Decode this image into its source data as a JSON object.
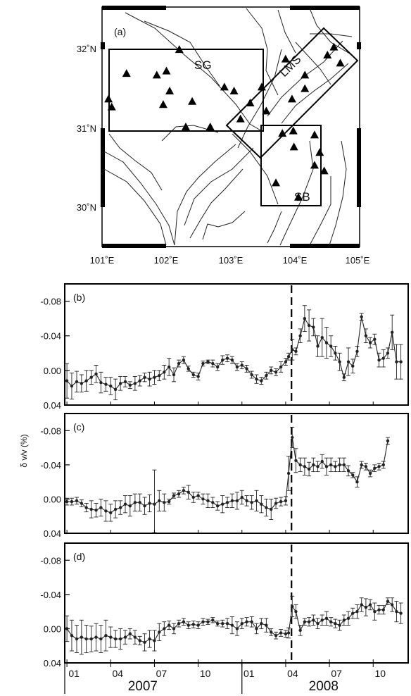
{
  "map": {
    "panel_label": "(a)",
    "lat_labels": [
      "32˚N",
      "31˚N",
      "30˚N"
    ],
    "lon_labels": [
      "101˚E",
      "102˚E",
      "103˚E",
      "104˚E",
      "105˚E"
    ],
    "lon_values": [
      101,
      102,
      103,
      104,
      105
    ],
    "lat_values": [
      32,
      31,
      30
    ],
    "extent": {
      "lon": [
        101,
        105
      ],
      "lat": [
        29.5,
        32.5
      ]
    },
    "regions": [
      {
        "label": "SG"
      },
      {
        "label": "LMS"
      },
      {
        "label": "SB"
      }
    ],
    "stations": [
      {
        "lon": 102.2,
        "lat": 31.97
      },
      {
        "lon": 101.38,
        "lat": 31.67
      },
      {
        "lon": 101.85,
        "lat": 31.65
      },
      {
        "lon": 102.0,
        "lat": 31.7
      },
      {
        "lon": 101.1,
        "lat": 31.35
      },
      {
        "lon": 101.15,
        "lat": 31.25
      },
      {
        "lon": 102.05,
        "lat": 31.45
      },
      {
        "lon": 101.95,
        "lat": 31.28
      },
      {
        "lon": 102.4,
        "lat": 31.32
      },
      {
        "lon": 102.3,
        "lat": 31.0
      },
      {
        "lon": 102.68,
        "lat": 31.0
      },
      {
        "lon": 102.9,
        "lat": 31.5
      },
      {
        "lon": 103.05,
        "lat": 31.45
      },
      {
        "lon": 103.48,
        "lat": 31.5
      },
      {
        "lon": 103.3,
        "lat": 31.3
      },
      {
        "lon": 103.15,
        "lat": 31.1
      },
      {
        "lon": 103.85,
        "lat": 31.85
      },
      {
        "lon": 104.15,
        "lat": 31.65
      },
      {
        "lon": 104.5,
        "lat": 31.9
      },
      {
        "lon": 104.6,
        "lat": 32.0
      },
      {
        "lon": 104.7,
        "lat": 31.8
      },
      {
        "lon": 104.15,
        "lat": 31.48
      },
      {
        "lon": 103.95,
        "lat": 31.35
      },
      {
        "lon": 103.55,
        "lat": 31.2
      },
      {
        "lon": 103.8,
        "lat": 30.92
      },
      {
        "lon": 103.97,
        "lat": 30.95
      },
      {
        "lon": 104.3,
        "lat": 30.9
      },
      {
        "lon": 103.98,
        "lat": 30.75
      },
      {
        "lon": 104.38,
        "lat": 30.68
      },
      {
        "lon": 104.3,
        "lat": 30.52
      },
      {
        "lon": 104.45,
        "lat": 30.45
      },
      {
        "lon": 103.7,
        "lat": 30.3
      },
      {
        "lon": 104.05,
        "lat": 30.12
      }
    ]
  },
  "timeseries": {
    "ylabel": "δ v/v (%)",
    "y_tick_labels": [
      "-0.08",
      "-0.04",
      "0.00",
      "0.04"
    ],
    "y_tick_values": [
      -0.08,
      -0.04,
      0.0,
      0.04
    ],
    "ylim_top": -0.1,
    "ylim_bottom": 0.04,
    "x_tick_labels": [
      "01",
      "04",
      "07",
      "10",
      "01",
      "04",
      "07",
      "10"
    ],
    "x_tick_months": [
      0,
      3,
      6,
      9,
      12,
      15,
      18,
      21
    ],
    "x_month_range": [
      -0.15,
      23.4
    ],
    "year_labels": [
      "2007",
      "2008"
    ],
    "year_positions": [
      5.2,
      17.6
    ],
    "event_month": 15.4,
    "panels": [
      {
        "label": "(b)"
      },
      {
        "label": "(c)"
      },
      {
        "label": "(d)"
      }
    ]
  },
  "chart_data": [
    {
      "type": "line",
      "panel": "(b)",
      "x_unit": "months since Jan 2007",
      "ylim": [
        0.04,
        -0.1
      ],
      "ylabel": "δ v/v (%)",
      "x": [
        0,
        0.33,
        0.67,
        1,
        1.33,
        1.67,
        2,
        2.33,
        2.67,
        3,
        3.33,
        3.67,
        4,
        4.33,
        4.67,
        5,
        5.33,
        5.67,
        6,
        6.33,
        6.67,
        7,
        7.33,
        7.67,
        8,
        8.33,
        8.67,
        9,
        9.33,
        9.67,
        10,
        10.33,
        10.67,
        11,
        11.33,
        11.67,
        12,
        12.33,
        12.67,
        13,
        13.33,
        13.67,
        14,
        14.33,
        14.67,
        15,
        15.2,
        15.45,
        15.7,
        16,
        16.3,
        16.6,
        16.9,
        17.2,
        17.5,
        17.8,
        18.1,
        18.4,
        18.7,
        19,
        19.3,
        19.6,
        19.9,
        20.2,
        20.5,
        20.8,
        21.1,
        21.4,
        21.7,
        22,
        22.3,
        22.6,
        22.9
      ],
      "y": [
        0.012,
        0.018,
        0.013,
        0.015,
        0.012,
        0.008,
        0.004,
        0.014,
        0.016,
        0.018,
        0.022,
        0.015,
        0.013,
        0.017,
        0.015,
        0.012,
        0.008,
        0.01,
        0.008,
        0.006,
        0.002,
        -0.004,
        0.005,
        -0.008,
        -0.012,
        -0.002,
        0.005,
        0.007,
        -0.008,
        -0.01,
        -0.008,
        -0.004,
        -0.012,
        -0.014,
        -0.012,
        -0.004,
        -0.006,
        -0.002,
        0.005,
        0.01,
        0.012,
        0.006,
        0.0,
        0.002,
        -0.004,
        -0.01,
        -0.016,
        -0.024,
        -0.022,
        -0.04,
        -0.06,
        -0.052,
        -0.05,
        -0.028,
        -0.038,
        -0.032,
        -0.028,
        -0.02,
        -0.01,
        0.008,
        -0.01,
        -0.005,
        -0.022,
        -0.062,
        -0.04,
        -0.032,
        -0.036,
        -0.012,
        -0.014,
        -0.02,
        -0.044,
        -0.01,
        -0.01
      ],
      "err": [
        0.02,
        0.015,
        0.012,
        0.01,
        0.012,
        0.008,
        0.01,
        0.012,
        0.008,
        0.01,
        0.012,
        0.008,
        0.006,
        0.004,
        0.008,
        0.006,
        0.005,
        0.008,
        0.008,
        0.006,
        0.008,
        0.01,
        0.008,
        0.004,
        0.004,
        0.003,
        0.003,
        0.004,
        0.003,
        0.002,
        0.004,
        0.004,
        0.005,
        0.004,
        0.004,
        0.004,
        0.004,
        0.004,
        0.004,
        0.005,
        0.004,
        0.004,
        0.004,
        0.004,
        0.006,
        0.004,
        0.004,
        0.012,
        0.004,
        0.008,
        0.015,
        0.018,
        0.01,
        0.012,
        0.022,
        0.018,
        0.012,
        0.008,
        0.01,
        0.004,
        0.016,
        0.008,
        0.006,
        0.004,
        0.008,
        0.006,
        0.006,
        0.008,
        0.01,
        0.006,
        0.02,
        0.02,
        0.02
      ]
    },
    {
      "type": "line",
      "panel": "(c)",
      "x_unit": "months since Jan 2007",
      "ylim": [
        0.04,
        -0.1
      ],
      "ylabel": "δ v/v (%)",
      "x": [
        0,
        0.33,
        0.67,
        1,
        1.33,
        1.67,
        2,
        2.33,
        2.67,
        3,
        3.33,
        3.67,
        4,
        4.33,
        4.67,
        5,
        5.33,
        5.67,
        6,
        6.33,
        6.67,
        7,
        7.33,
        7.67,
        8,
        8.33,
        8.67,
        9,
        9.33,
        9.67,
        10,
        10.33,
        10.67,
        11,
        11.33,
        11.67,
        12,
        12.33,
        12.67,
        13,
        13.33,
        13.67,
        14,
        14.33,
        14.67,
        15,
        15.2,
        15.45,
        15.7,
        16,
        16.3,
        16.6,
        16.9,
        17.2,
        17.5,
        17.8,
        18.1,
        18.4,
        18.7,
        19,
        19.3,
        19.6,
        19.9,
        20.2,
        20.5,
        20.8,
        21.1,
        21.4,
        21.7,
        22
      ],
      "y": [
        0.003,
        0.003,
        0.002,
        0.005,
        0.01,
        0.012,
        0.013,
        0.01,
        0.014,
        0.016,
        0.012,
        0.01,
        0.006,
        0.008,
        0.004,
        0.004,
        0.008,
        0.005,
        0.006,
        0.002,
        0.004,
        0.003,
        -0.004,
        -0.006,
        -0.01,
        -0.008,
        -0.002,
        -0.004,
        0.0,
        0.002,
        0.004,
        0.008,
        0.006,
        0.004,
        0.002,
        0.002,
        -0.002,
        0.002,
        0.004,
        0.002,
        0.006,
        0.01,
        0.012,
        0.005,
        0.003,
        0.002,
        -0.03,
        -0.072,
        -0.045,
        -0.04,
        -0.038,
        -0.035,
        -0.04,
        -0.038,
        -0.044,
        -0.038,
        -0.04,
        -0.038,
        -0.04,
        -0.04,
        -0.033,
        -0.028,
        -0.02,
        -0.04,
        -0.038,
        -0.03,
        -0.036,
        -0.038,
        -0.04,
        -0.068
      ],
      "err": [
        0.004,
        0.004,
        0.004,
        0.004,
        0.005,
        0.01,
        0.008,
        0.01,
        0.012,
        0.01,
        0.01,
        0.008,
        0.01,
        0.012,
        0.01,
        0.01,
        0.01,
        0.01,
        0.04,
        0.012,
        0.01,
        0.003,
        0.003,
        0.004,
        0.004,
        0.008,
        0.006,
        0.004,
        0.006,
        0.008,
        0.006,
        0.005,
        0.01,
        0.006,
        0.008,
        0.01,
        0.008,
        0.006,
        0.008,
        0.012,
        0.01,
        0.01,
        0.012,
        0.006,
        0.005,
        0.005,
        0.02,
        0.012,
        0.014,
        0.008,
        0.01,
        0.008,
        0.008,
        0.006,
        0.008,
        0.01,
        0.008,
        0.006,
        0.008,
        0.008,
        0.006,
        0.003,
        0.006,
        0.004,
        0.004,
        0.004,
        0.004,
        0.004,
        0.004,
        0.004
      ]
    },
    {
      "type": "line",
      "panel": "(d)",
      "x_unit": "months since Jan 2007",
      "ylim": [
        0.04,
        -0.1
      ],
      "ylabel": "δ v/v (%)",
      "x": [
        0,
        0.33,
        0.67,
        1,
        1.33,
        1.67,
        2,
        2.33,
        2.67,
        3,
        3.33,
        3.67,
        4,
        4.33,
        4.67,
        5,
        5.33,
        5.67,
        6,
        6.33,
        6.67,
        7,
        7.33,
        7.67,
        8,
        8.33,
        8.67,
        9,
        9.33,
        9.67,
        10,
        10.33,
        10.67,
        11,
        11.33,
        11.67,
        12,
        12.33,
        12.67,
        13,
        13.33,
        13.67,
        14,
        14.33,
        14.67,
        15,
        15.2,
        15.45,
        15.7,
        16,
        16.3,
        16.6,
        16.9,
        17.2,
        17.5,
        17.8,
        18.1,
        18.4,
        18.7,
        19,
        19.3,
        19.6,
        19.9,
        20.2,
        20.5,
        20.8,
        21.1,
        21.4,
        21.7,
        22,
        22.3,
        22.6,
        22.9
      ],
      "y": [
        0.0,
        0.008,
        0.012,
        0.01,
        0.012,
        0.012,
        0.01,
        0.012,
        0.008,
        0.01,
        0.012,
        0.012,
        0.01,
        0.006,
        0.01,
        0.014,
        0.016,
        0.012,
        0.014,
        0.004,
        0.0,
        -0.004,
        0.0,
        -0.006,
        -0.008,
        -0.004,
        -0.005,
        -0.004,
        -0.008,
        -0.008,
        -0.01,
        -0.006,
        -0.006,
        -0.006,
        -0.004,
        0.0,
        -0.006,
        -0.008,
        -0.008,
        0.0,
        -0.006,
        -0.004,
        0.004,
        0.008,
        0.005,
        0.006,
        0.005,
        -0.026,
        -0.02,
        0.002,
        -0.008,
        -0.008,
        -0.01,
        -0.006,
        -0.01,
        -0.012,
        -0.008,
        -0.006,
        -0.004,
        -0.01,
        -0.012,
        -0.018,
        -0.02,
        -0.028,
        -0.025,
        -0.028,
        -0.02,
        -0.022,
        -0.022,
        -0.032,
        -0.028,
        -0.02,
        -0.018
      ],
      "err": [
        0.015,
        0.018,
        0.016,
        0.02,
        0.016,
        0.015,
        0.016,
        0.016,
        0.018,
        0.012,
        0.01,
        0.012,
        0.008,
        0.006,
        0.008,
        0.005,
        0.01,
        0.01,
        0.012,
        0.01,
        0.008,
        0.005,
        0.006,
        0.004,
        0.004,
        0.004,
        0.004,
        0.004,
        0.004,
        0.003,
        0.003,
        0.003,
        0.004,
        0.006,
        0.01,
        0.008,
        0.006,
        0.005,
        0.006,
        0.006,
        0.006,
        0.008,
        0.004,
        0.004,
        0.004,
        0.004,
        0.006,
        0.012,
        0.008,
        0.006,
        0.004,
        0.005,
        0.006,
        0.006,
        0.006,
        0.008,
        0.005,
        0.005,
        0.006,
        0.006,
        0.008,
        0.006,
        0.008,
        0.008,
        0.01,
        0.006,
        0.01,
        0.005,
        0.005,
        0.004,
        0.008,
        0.012,
        0.012
      ]
    }
  ]
}
